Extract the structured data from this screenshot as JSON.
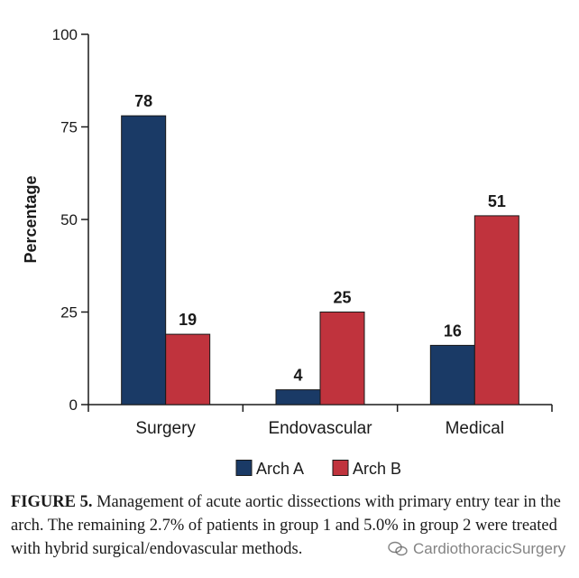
{
  "chart_data": {
    "type": "bar",
    "categories": [
      "Surgery",
      "Endovascular",
      "Medical"
    ],
    "series": [
      {
        "name": "Arch A",
        "values": [
          78,
          4,
          16
        ],
        "color": "#1a3a66"
      },
      {
        "name": "Arch B",
        "values": [
          19,
          25,
          51
        ],
        "color": "#c0333d"
      }
    ],
    "ylabel": "Percentage",
    "xlabel": "",
    "ylim": [
      0,
      100
    ],
    "yticks": [
      0,
      25,
      50,
      75,
      100
    ],
    "grid": false,
    "legend": "bottom-center"
  },
  "caption": {
    "label": "FIGURE 5.",
    "text": "Management of acute aortic dissections with primary entry tear in the arch. The remaining 2.7% of patients in group 1 and 5.0% in group 2 were treated with hybrid surgical/endovascular methods."
  },
  "watermark": {
    "text": "CardiothoracicSurgery",
    "icon": "wechat-icon"
  }
}
